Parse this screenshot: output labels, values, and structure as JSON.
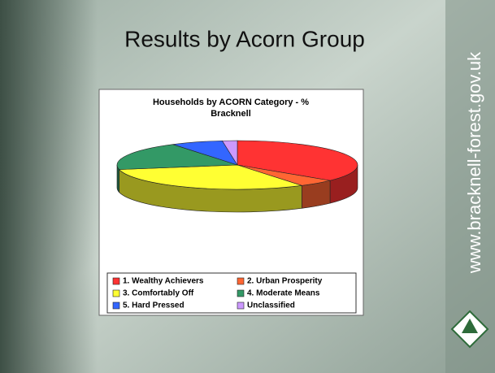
{
  "slide_title": "Results by Acorn Group",
  "side_text": "www.bracknell-forest.gov.uk",
  "chart_data": {
    "type": "pie3d",
    "title": "Households by ACORN Category - %",
    "subtitle": "Bracknell",
    "categories": [
      "1. Wealthy Achievers",
      "2. Urban Prosperity",
      "3. Comfortably Off",
      "4. Moderate Means",
      "5. Hard Pressed",
      "Unclassified"
    ],
    "values": [
      36,
      5,
      31,
      19,
      7,
      2
    ],
    "colors": [
      "#ff3333",
      "#ff6633",
      "#ffff33",
      "#339966",
      "#3366ff",
      "#cc99ff"
    ]
  }
}
